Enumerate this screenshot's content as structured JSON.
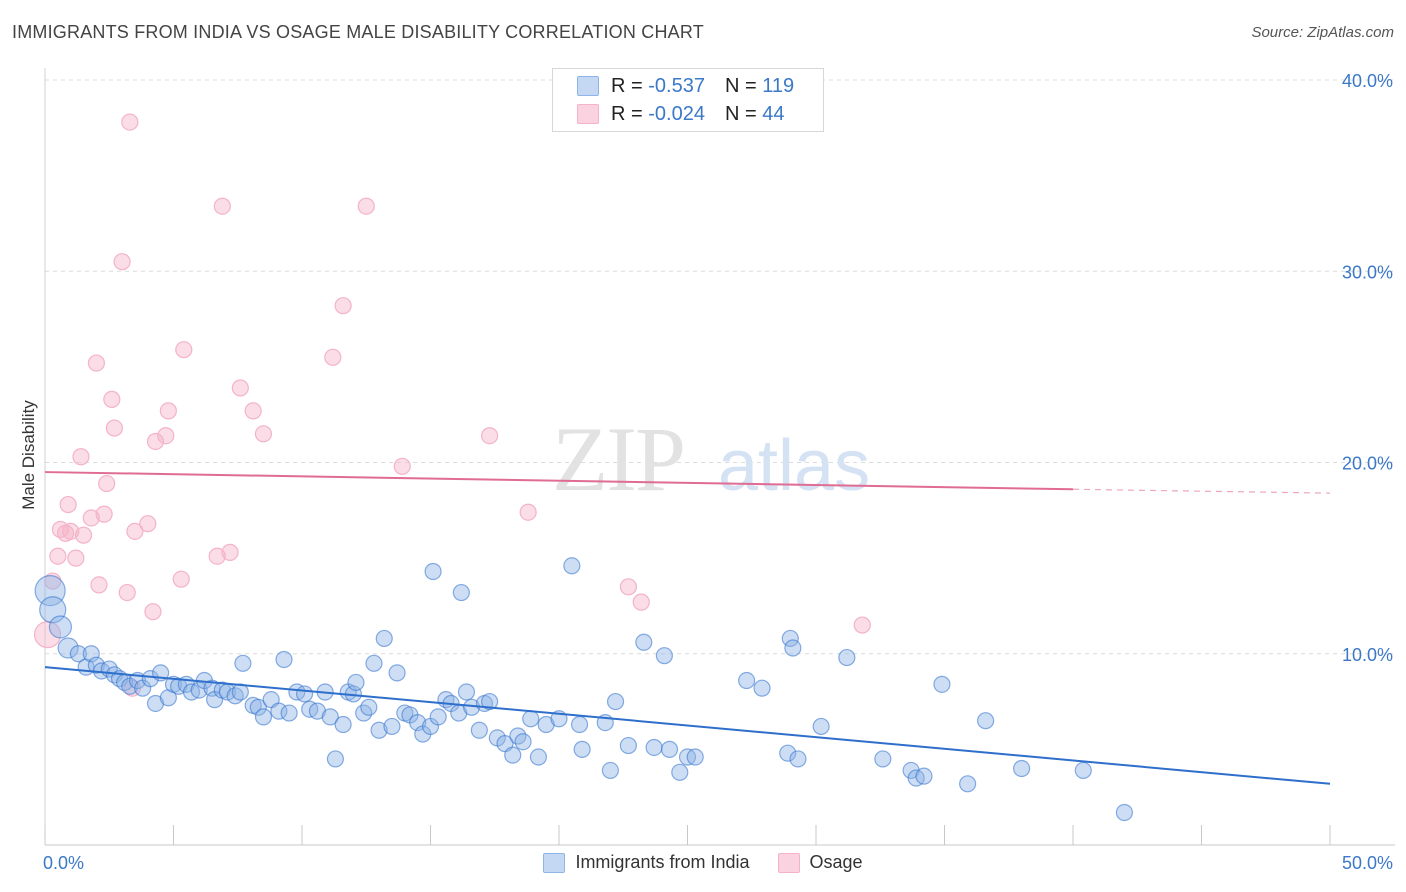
{
  "header": {
    "title": "IMMIGRANTS FROM INDIA VS OSAGE MALE DISABILITY CORRELATION CHART",
    "source": "Source: ZipAtlas.com"
  },
  "legend": {
    "rows": [
      {
        "r_label": "R =",
        "r_value": "-0.537",
        "n_label": "N =",
        "n_value": "119"
      },
      {
        "r_label": "R =",
        "r_value": "-0.024",
        "n_label": "N =",
        "n_value": "44"
      }
    ]
  },
  "watermark": {
    "zip": "ZIP",
    "atlas": "atlas"
  },
  "chart_data": {
    "type": "scatter",
    "title": "IMMIGRANTS FROM INDIA VS OSAGE MALE DISABILITY CORRELATION CHART",
    "xlabel": "",
    "ylabel": "Male Disability",
    "xlim": [
      0,
      50
    ],
    "ylim": [
      0,
      40
    ],
    "x_tick_labels": [
      "0.0%",
      "50.0%"
    ],
    "y_tick_labels": [
      "10.0%",
      "20.0%",
      "30.0%",
      "40.0%"
    ],
    "y_ticks": [
      10,
      20,
      30,
      40
    ],
    "grid": true,
    "legend_position": "top-center",
    "colors": {
      "india": "#8fb4e6",
      "india_line": "#2e6fcc",
      "osage": "#f4b3c8",
      "osage_line": "#e06c94"
    },
    "series": [
      {
        "name": "Immigrants from India",
        "trend": {
          "x": [
            0,
            50
          ],
          "y": [
            9.3,
            3.2
          ]
        },
        "points": [
          [
            0.2,
            13.3
          ],
          [
            0.3,
            12.3
          ],
          [
            0.6,
            11.4
          ],
          [
            0.9,
            10.3
          ],
          [
            1.3,
            10.0
          ],
          [
            1.6,
            9.3
          ],
          [
            1.8,
            10.0
          ],
          [
            2.0,
            9.4
          ],
          [
            2.2,
            9.1
          ],
          [
            2.5,
            9.2
          ],
          [
            2.7,
            8.9
          ],
          [
            2.9,
            8.7
          ],
          [
            3.1,
            8.5
          ],
          [
            3.3,
            8.3
          ],
          [
            3.6,
            8.6
          ],
          [
            3.8,
            8.2
          ],
          [
            4.1,
            8.7
          ],
          [
            4.3,
            7.4
          ],
          [
            4.5,
            9.0
          ],
          [
            4.8,
            7.7
          ],
          [
            5.0,
            8.4
          ],
          [
            5.2,
            8.3
          ],
          [
            5.5,
            8.4
          ],
          [
            5.7,
            8.0
          ],
          [
            6.0,
            8.1
          ],
          [
            6.2,
            8.6
          ],
          [
            6.5,
            8.2
          ],
          [
            6.6,
            7.6
          ],
          [
            6.9,
            8.1
          ],
          [
            7.1,
            8.0
          ],
          [
            7.4,
            7.8
          ],
          [
            7.6,
            8.0
          ],
          [
            7.7,
            9.5
          ],
          [
            8.1,
            7.3
          ],
          [
            8.3,
            7.2
          ],
          [
            8.5,
            6.7
          ],
          [
            8.8,
            7.6
          ],
          [
            9.1,
            7.0
          ],
          [
            9.3,
            9.7
          ],
          [
            9.5,
            6.9
          ],
          [
            9.8,
            8.0
          ],
          [
            10.1,
            7.9
          ],
          [
            10.3,
            7.1
          ],
          [
            10.6,
            7.0
          ],
          [
            10.9,
            8.0
          ],
          [
            11.1,
            6.7
          ],
          [
            11.3,
            4.5
          ],
          [
            11.6,
            6.3
          ],
          [
            11.8,
            8.0
          ],
          [
            12.0,
            7.9
          ],
          [
            12.1,
            8.5
          ],
          [
            12.4,
            6.9
          ],
          [
            12.6,
            7.2
          ],
          [
            12.8,
            9.5
          ],
          [
            13.0,
            6.0
          ],
          [
            13.2,
            10.8
          ],
          [
            13.5,
            6.2
          ],
          [
            13.7,
            9.0
          ],
          [
            14.0,
            6.9
          ],
          [
            14.2,
            6.8
          ],
          [
            14.5,
            6.4
          ],
          [
            14.7,
            5.8
          ],
          [
            15.0,
            6.2
          ],
          [
            15.1,
            14.3
          ],
          [
            15.3,
            6.7
          ],
          [
            15.6,
            7.6
          ],
          [
            15.8,
            7.4
          ],
          [
            16.1,
            6.9
          ],
          [
            16.2,
            13.2
          ],
          [
            16.4,
            8.0
          ],
          [
            16.6,
            7.2
          ],
          [
            16.9,
            6.0
          ],
          [
            17.1,
            7.4
          ],
          [
            17.3,
            7.5
          ],
          [
            17.6,
            5.6
          ],
          [
            17.9,
            5.3
          ],
          [
            18.2,
            4.7
          ],
          [
            18.4,
            5.7
          ],
          [
            18.6,
            5.4
          ],
          [
            18.9,
            6.6
          ],
          [
            19.2,
            4.6
          ],
          [
            19.5,
            6.3
          ],
          [
            20.0,
            6.6
          ],
          [
            20.5,
            14.6
          ],
          [
            20.8,
            6.3
          ],
          [
            20.9,
            5.0
          ],
          [
            21.8,
            6.4
          ],
          [
            22.0,
            3.9
          ],
          [
            22.2,
            7.5
          ],
          [
            22.7,
            5.2
          ],
          [
            23.3,
            10.6
          ],
          [
            23.7,
            5.1
          ],
          [
            24.1,
            9.9
          ],
          [
            24.3,
            5.0
          ],
          [
            24.7,
            3.8
          ],
          [
            25.0,
            4.6
          ],
          [
            25.3,
            4.6
          ],
          [
            27.3,
            8.6
          ],
          [
            27.9,
            8.2
          ],
          [
            28.9,
            4.8
          ],
          [
            29.0,
            10.8
          ],
          [
            29.1,
            10.3
          ],
          [
            29.3,
            4.5
          ],
          [
            30.2,
            6.2
          ],
          [
            31.2,
            9.8
          ],
          [
            32.6,
            4.5
          ],
          [
            33.7,
            3.9
          ],
          [
            33.9,
            3.5
          ],
          [
            34.2,
            3.6
          ],
          [
            34.9,
            8.4
          ],
          [
            35.9,
            3.2
          ],
          [
            36.6,
            6.5
          ],
          [
            38.0,
            4.0
          ],
          [
            40.4,
            3.9
          ],
          [
            42.0,
            1.7
          ]
        ]
      },
      {
        "name": "Osage",
        "trend": {
          "x": [
            0,
            40,
            50
          ],
          "y": [
            19.5,
            18.6,
            18.4
          ]
        },
        "points": [
          [
            0.1,
            11.0
          ],
          [
            0.3,
            13.8
          ],
          [
            0.5,
            15.1
          ],
          [
            0.6,
            16.5
          ],
          [
            0.8,
            16.3
          ],
          [
            0.9,
            17.8
          ],
          [
            1.0,
            16.4
          ],
          [
            1.2,
            15.0
          ],
          [
            1.4,
            20.3
          ],
          [
            1.5,
            16.2
          ],
          [
            1.8,
            17.1
          ],
          [
            2.0,
            25.2
          ],
          [
            2.1,
            13.6
          ],
          [
            2.3,
            17.3
          ],
          [
            2.4,
            18.9
          ],
          [
            2.6,
            23.3
          ],
          [
            2.7,
            21.8
          ],
          [
            3.0,
            30.5
          ],
          [
            3.2,
            13.2
          ],
          [
            3.3,
            37.8
          ],
          [
            3.4,
            8.2
          ],
          [
            3.5,
            16.4
          ],
          [
            4.0,
            16.8
          ],
          [
            4.2,
            12.2
          ],
          [
            4.3,
            21.1
          ],
          [
            4.7,
            21.4
          ],
          [
            4.8,
            22.7
          ],
          [
            5.3,
            13.9
          ],
          [
            5.4,
            25.9
          ],
          [
            6.7,
            15.1
          ],
          [
            6.9,
            33.4
          ],
          [
            7.2,
            15.3
          ],
          [
            7.6,
            23.9
          ],
          [
            8.1,
            22.7
          ],
          [
            8.5,
            21.5
          ],
          [
            11.2,
            25.5
          ],
          [
            11.6,
            28.2
          ],
          [
            12.5,
            33.4
          ],
          [
            13.9,
            19.8
          ],
          [
            17.3,
            21.4
          ],
          [
            18.8,
            17.4
          ],
          [
            22.7,
            13.5
          ],
          [
            23.2,
            12.7
          ],
          [
            31.8,
            11.5
          ]
        ]
      }
    ]
  },
  "bottom_legend": {
    "items": [
      {
        "label": "Immigrants from India"
      },
      {
        "label": "Osage"
      }
    ]
  }
}
